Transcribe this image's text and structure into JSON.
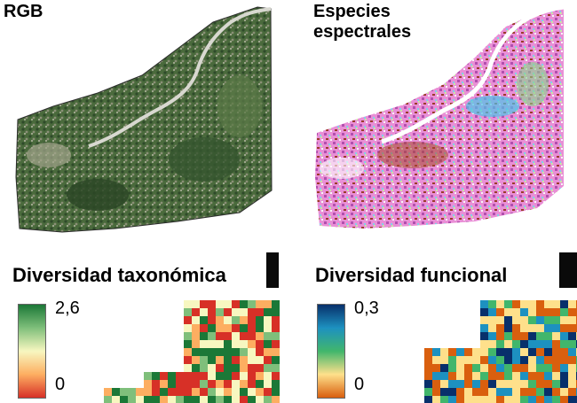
{
  "panels": {
    "rgb": {
      "label": "RGB"
    },
    "species": {
      "label_line1": "Especies",
      "label_line2": "espectrales"
    },
    "taxonomic": {
      "title": "Diversidad taxonómica",
      "legend_max": "2,6",
      "legend_min": "0",
      "colors": [
        "#1b7837",
        "#7fbf7b",
        "#f7f7c0",
        "#fdae61",
        "#d73027"
      ]
    },
    "functional": {
      "title": "Diversidad funcional",
      "legend_max": "0,3",
      "legend_min": "0",
      "colors": [
        "#08306b",
        "#1d91c0",
        "#41b66c",
        "#fee08b",
        "#d95f0e"
      ]
    }
  }
}
